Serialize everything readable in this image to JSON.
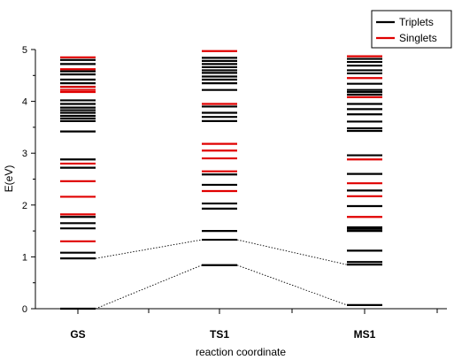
{
  "chart_data": {
    "type": "energy-level diagram",
    "xlabel": "reaction coordinate",
    "ylabel": "E(eV)",
    "ylim": [
      0,
      5
    ],
    "y_ticks": [
      "0",
      "1",
      "2",
      "3",
      "4",
      "5"
    ],
    "categories": [
      "GS",
      "TS1",
      "MS1"
    ],
    "grid": false,
    "legend_position": "top-right",
    "series": [
      {
        "name": "Triplets",
        "color": "#000000",
        "levels": [
          [
            0.0,
            0.97,
            1.08,
            1.55,
            1.65,
            1.77,
            2.72,
            2.88,
            3.42,
            3.62,
            3.67,
            3.72,
            3.78,
            3.83,
            3.88,
            3.95,
            4.02,
            4.28,
            4.35,
            4.42,
            4.52,
            4.58,
            4.72,
            4.8
          ],
          [
            0.84,
            1.33,
            1.5,
            1.93,
            2.03,
            2.39,
            2.59,
            3.62,
            3.7,
            3.78,
            3.9,
            4.22,
            4.35,
            4.42,
            4.48,
            4.55,
            4.6,
            4.66,
            4.72,
            4.78,
            4.84
          ],
          [
            0.07,
            0.85,
            0.9,
            1.12,
            1.5,
            1.54,
            1.57,
            1.98,
            2.28,
            2.6,
            2.96,
            3.43,
            3.48,
            3.61,
            3.75,
            3.85,
            3.95,
            4.13,
            4.18,
            4.22,
            4.34,
            4.54,
            4.6,
            4.69,
            4.76,
            4.82
          ]
        ]
      },
      {
        "name": "Singlets",
        "color": "#e00000",
        "levels": [
          [
            1.3,
            1.82,
            2.16,
            2.46,
            2.8,
            4.18,
            4.22,
            4.28,
            4.62,
            4.85
          ],
          [
            2.27,
            2.65,
            2.9,
            3.05,
            3.18,
            3.95,
            4.97
          ],
          [
            1.77,
            2.17,
            2.42,
            2.88,
            4.08,
            4.45,
            4.87
          ]
        ]
      }
    ],
    "connectors": [
      {
        "from_category": "GS",
        "to_category": "TS1",
        "from_value": 0.0,
        "to_value": 0.84
      },
      {
        "from_category": "TS1",
        "to_category": "MS1",
        "from_value": 0.84,
        "to_value": 0.07
      },
      {
        "from_category": "GS",
        "to_category": "TS1",
        "from_value": 0.97,
        "to_value": 1.33
      },
      {
        "from_category": "TS1",
        "to_category": "MS1",
        "from_value": 1.33,
        "to_value": 0.85
      }
    ]
  }
}
